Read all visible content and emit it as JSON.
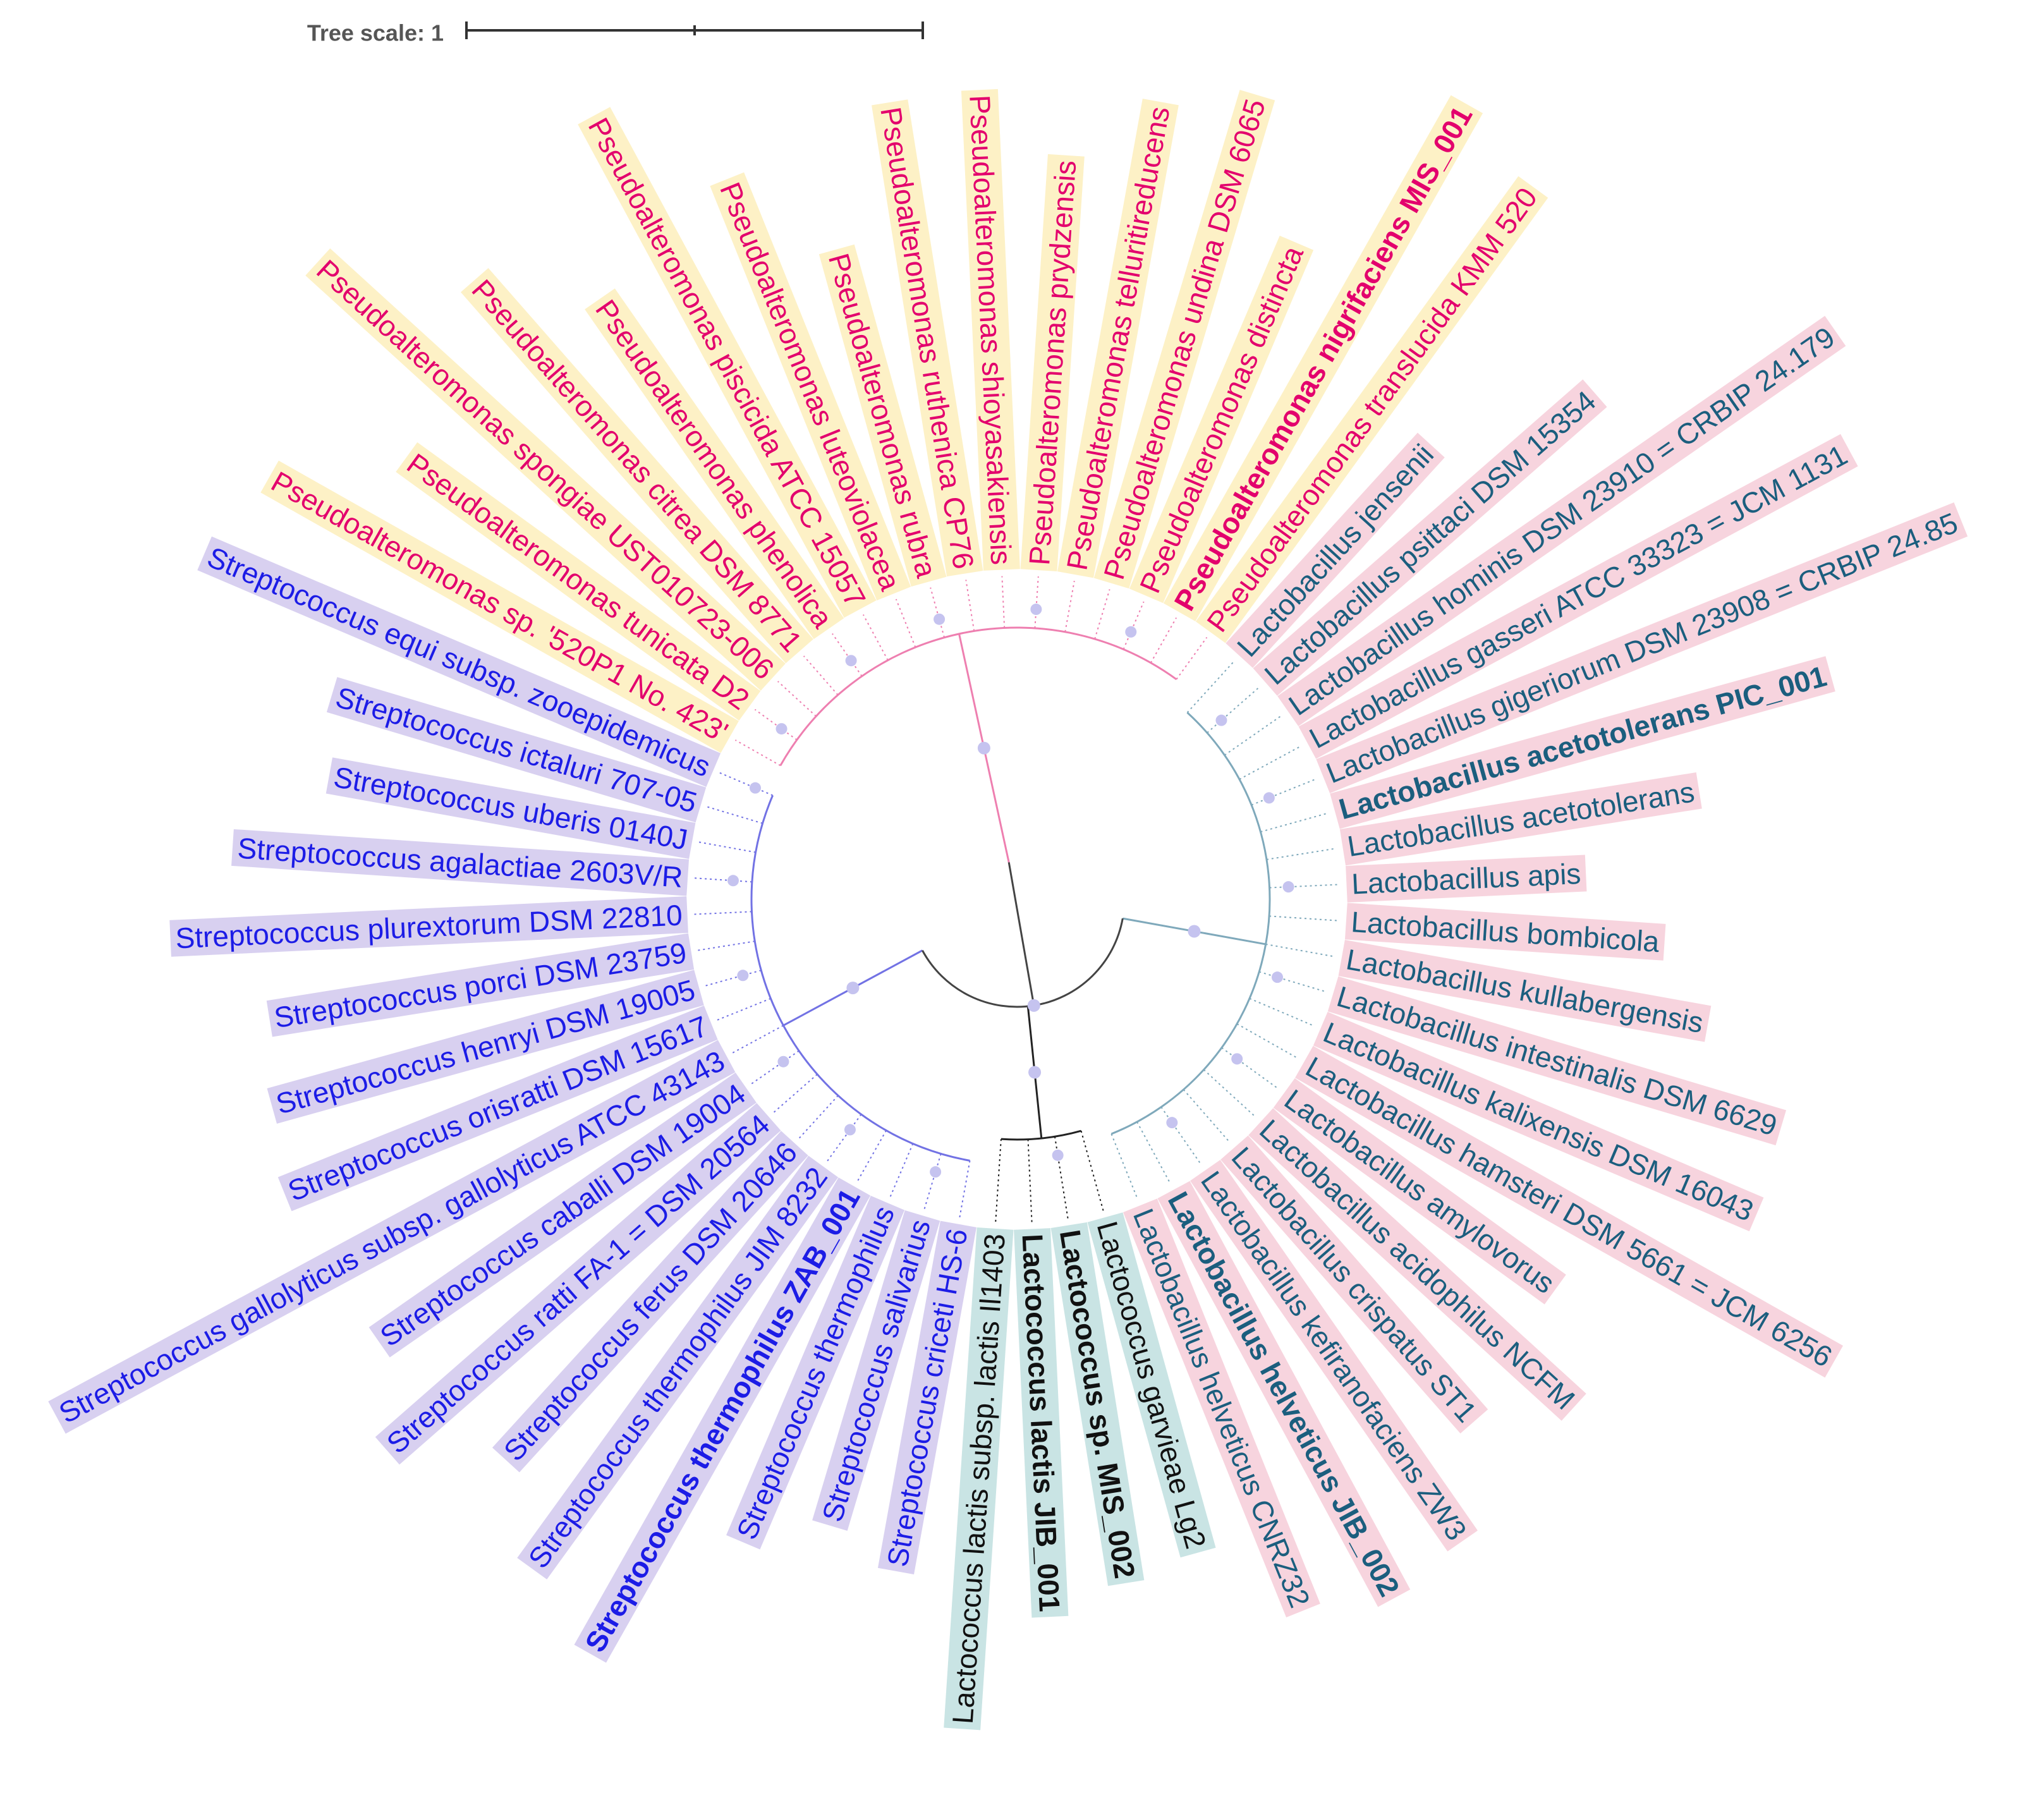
{
  "tree_scale": "Tree scale: 1",
  "clades": [
    {
      "color": "#e3006d",
      "highlight": "#fdf1c6",
      "branch": "#ee7fb0",
      "leaves": [
        {
          "label": "Pseudoalteromonas sp. '520P1 No. 423'",
          "bold": false
        },
        {
          "label": "Pseudoalteromonas tunicata D2",
          "bold": false
        },
        {
          "label": "Pseudoalteromonas spongiae UST010723-006",
          "bold": false
        },
        {
          "label": "Pseudoalteromonas citrea DSM 8771",
          "bold": false
        },
        {
          "label": "Pseudoalteromonas phenolica",
          "bold": false
        },
        {
          "label": "Pseudoalteromonas piscicida ATCC 15057",
          "bold": false
        },
        {
          "label": "Pseudoalteromonas luteoviolacea",
          "bold": false
        },
        {
          "label": "Pseudoalteromonas rubra",
          "bold": false
        },
        {
          "label": "Pseudoalteromonas ruthenica CP76",
          "bold": false
        },
        {
          "label": "Pseudoalteromonas shioyasakiensis",
          "bold": false
        },
        {
          "label": "Pseudoalteromonas prydzensis",
          "bold": false
        },
        {
          "label": "Pseudoalteromonas telluritireducens",
          "bold": false
        },
        {
          "label": "Pseudoalteromonas undina DSM 6065",
          "bold": false
        },
        {
          "label": "Pseudoalteromonas distincta",
          "bold": false
        },
        {
          "label": "Pseudoalteromonas nigrifaciens MIS_001",
          "bold": true
        },
        {
          "label": "Pseudoalteromonas translucida KMM 520",
          "bold": false
        }
      ]
    },
    {
      "color": "#1b5e7e",
      "highlight": "#f7d4de",
      "branch": "#7fa9bb",
      "leaves": [
        {
          "label": "Lactobacillus jensenii",
          "bold": false
        },
        {
          "label": "Lactobacillus psittaci DSM 15354",
          "bold": false
        },
        {
          "label": "Lactobacillus hominis DSM 23910 = CRBIP 24.179",
          "bold": false
        },
        {
          "label": "Lactobacillus gasseri ATCC 33323 = JCM 1131",
          "bold": false
        },
        {
          "label": "Lactobacillus gigeriorum DSM 23908 = CRBIP 24.85",
          "bold": false
        },
        {
          "label": "Lactobacillus acetotolerans PIC_001",
          "bold": true
        },
        {
          "label": "Lactobacillus acetotolerans",
          "bold": false
        },
        {
          "label": "Lactobacillus apis",
          "bold": false
        },
        {
          "label": "Lactobacillus bombicola",
          "bold": false
        },
        {
          "label": "Lactobacillus kullabergensis",
          "bold": false
        },
        {
          "label": "Lactobacillus intestinalis DSM 6629",
          "bold": false
        },
        {
          "label": "Lactobacillus kalixensis DSM 16043",
          "bold": false
        },
        {
          "label": "Lactobacillus hamsteri DSM 5661 = JCM 6256",
          "bold": false
        },
        {
          "label": "Lactobacillus amylovorus",
          "bold": false
        },
        {
          "label": "Lactobacillus acidophilus NCFM",
          "bold": false
        },
        {
          "label": "Lactobacillus crispatus ST1",
          "bold": false
        },
        {
          "label": "Lactobacillus kefiranofaciens ZW3",
          "bold": false
        },
        {
          "label": "Lactobacillus helveticus JIB_002",
          "bold": true
        },
        {
          "label": "Lactobacillus helveticus CNRZ32",
          "bold": false
        }
      ]
    },
    {
      "color": "#111111",
      "highlight": "#c9e4e4",
      "branch": "#222222",
      "leaves": [
        {
          "label": "Lactococcus garvieae Lg2",
          "bold": false
        },
        {
          "label": "Lactococcus sp. MIS_002",
          "bold": true
        },
        {
          "label": "Lactococcus lactis JIB_001",
          "bold": true
        },
        {
          "label": "Lactococcus lactis subsp. lactis Il1403",
          "bold": false
        }
      ]
    },
    {
      "color": "#1c1ce6",
      "highlight": "#d8d0f0",
      "branch": "#7272e4",
      "leaves": [
        {
          "label": "Streptococcus criceti HS-6",
          "bold": false
        },
        {
          "label": "Streptococcus salivarius",
          "bold": false
        },
        {
          "label": "Streptococcus thermophilus",
          "bold": false
        },
        {
          "label": "Streptococcus thermophilus ZAB_001",
          "bold": true
        },
        {
          "label": "Streptococcus thermophilus JIM 8232",
          "bold": false
        },
        {
          "label": "Streptococcus ferus DSM 20646",
          "bold": false
        },
        {
          "label": "Streptococcus ratti FA-1 = DSM 20564",
          "bold": false
        },
        {
          "label": "Streptococcus caballi DSM 19004",
          "bold": false
        },
        {
          "label": "Streptococcus gallolyticus subsp. gallolyticus ATCC 43143",
          "bold": false
        },
        {
          "label": "Streptococcus orisratti DSM 15617",
          "bold": false
        },
        {
          "label": "Streptococcus henryi DSM 19005",
          "bold": false
        },
        {
          "label": "Streptococcus porci DSM 23759",
          "bold": false
        },
        {
          "label": "Streptococcus plurextorum DSM 22810",
          "bold": false
        },
        {
          "label": "Streptococcus agalactiae 2603V/R",
          "bold": false
        },
        {
          "label": "Streptococcus uberis 0140J",
          "bold": false
        },
        {
          "label": "Streptococcus ictaluri 707-05",
          "bold": false
        },
        {
          "label": "Streptococcus equi subsp. zooepidemicus",
          "bold": false
        }
      ]
    }
  ]
}
